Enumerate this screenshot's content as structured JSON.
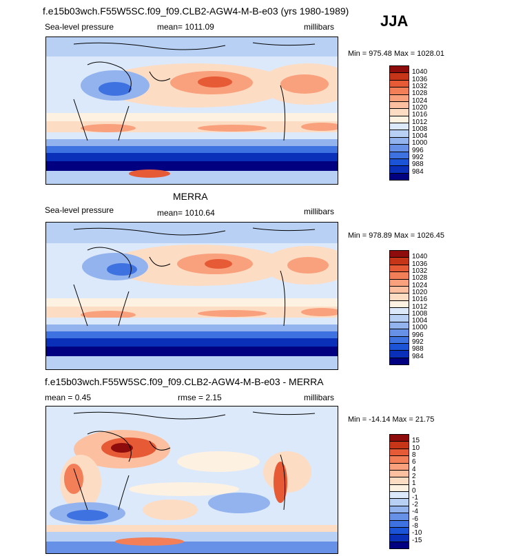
{
  "figure": {
    "title": "f.e15b03wch.F55W5SC.f09_f09.CLB2-AGW4-M-B-e03 (yrs 1980-1989)",
    "season": "JJA"
  },
  "colors": {
    "full": [
      "#000080",
      "#0a2fb8",
      "#1c54d8",
      "#3e72e0",
      "#6691e6",
      "#92b3ee",
      "#b8d0f4",
      "#dce9fa",
      "#fdf1e2",
      "#fddcc4",
      "#fcc0a0",
      "#f9a17c",
      "#f37f58",
      "#e65a36",
      "#c63518",
      "#8e0c0c"
    ],
    "diff": [
      "#000080",
      "#0a2fb8",
      "#1c54d8",
      "#3e72e0",
      "#6691e6",
      "#92b3ee",
      "#b8d0f4",
      "#dce9fa",
      "#fdf1e2",
      "#fddcc4",
      "#fcc0a0",
      "#f9a17c",
      "#f37f58",
      "#e65a36",
      "#c63518",
      "#8e0c0c"
    ]
  },
  "chart_data": [
    {
      "type": "heatmap",
      "variable": "Sea-level pressure",
      "mean_label": "mean= 1011.09",
      "units": "millibars",
      "minmax": "Min = 975.48 Max = 1028.01",
      "min": 975.48,
      "max": 1028.01,
      "levels": [
        "1040",
        "1036",
        "1032",
        "1028",
        "1024",
        "1020",
        "1016",
        "1012",
        "1008",
        "1004",
        "1000",
        "996",
        "992",
        "988",
        "984"
      ]
    },
    {
      "type": "heatmap",
      "title": "MERRA",
      "variable": "Sea-level pressure",
      "mean_label": "mean= 1010.64",
      "units": "millibars",
      "minmax": "Min = 978.89 Max = 1026.45",
      "min": 978.89,
      "max": 1026.45,
      "levels": [
        "1040",
        "1036",
        "1032",
        "1028",
        "1024",
        "1020",
        "1016",
        "1012",
        "1008",
        "1004",
        "1000",
        "996",
        "992",
        "988",
        "984"
      ]
    },
    {
      "type": "heatmap",
      "title": "f.e15b03wch.F55W5SC.f09_f09.CLB2-AGW4-M-B-e03 - MERRA",
      "mean_label": "mean =    0.45",
      "rmse_label": "rmse =    2.15",
      "units": "millibars",
      "minmax": "Min = -14.14 Max =  21.75",
      "min": -14.14,
      "max": 21.75,
      "levels": [
        "15",
        "10",
        "8",
        "6",
        "4",
        "2",
        "1",
        "0",
        "-1",
        "-2",
        "-4",
        "-6",
        "-8",
        "-10",
        "-15"
      ]
    }
  ]
}
